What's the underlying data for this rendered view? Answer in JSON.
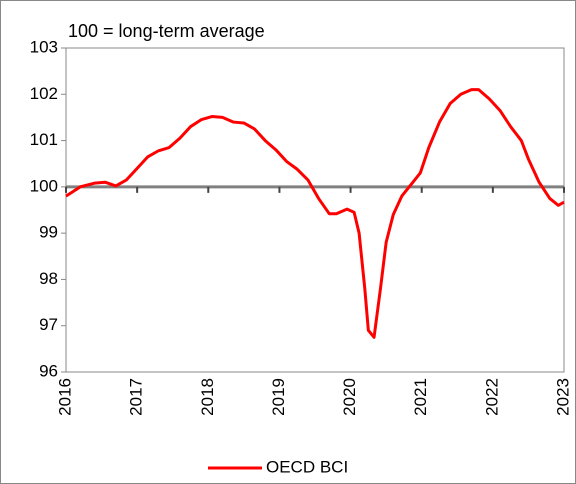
{
  "chart_data": {
    "type": "line",
    "title": "100 = long-term average",
    "x": [
      2016.0,
      2016.2,
      2016.4,
      2016.55,
      2016.7,
      2016.85,
      2017.0,
      2017.15,
      2017.3,
      2017.45,
      2017.6,
      2017.75,
      2017.9,
      2018.05,
      2018.2,
      2018.35,
      2018.5,
      2018.65,
      2018.8,
      2018.95,
      2019.1,
      2019.25,
      2019.4,
      2019.55,
      2019.7,
      2019.8,
      2019.95,
      2020.05,
      2020.12,
      2020.2,
      2020.25,
      2020.33,
      2020.42,
      2020.5,
      2020.6,
      2020.72,
      2020.85,
      2020.98,
      2021.1,
      2021.25,
      2021.4,
      2021.55,
      2021.7,
      2021.8,
      2021.95,
      2022.1,
      2022.25,
      2022.4,
      2022.5,
      2022.65,
      2022.8,
      2022.92,
      2023.0
    ],
    "series": [
      {
        "name": "OECD BCI",
        "color": "#ff0000",
        "values": [
          99.8,
          100.0,
          100.08,
          100.1,
          100.02,
          100.15,
          100.4,
          100.65,
          100.78,
          100.85,
          101.05,
          101.3,
          101.45,
          101.52,
          101.5,
          101.4,
          101.38,
          101.25,
          101.0,
          100.8,
          100.55,
          100.38,
          100.15,
          99.75,
          99.42,
          99.42,
          99.52,
          99.45,
          99.0,
          97.8,
          96.9,
          96.75,
          97.8,
          98.8,
          99.4,
          99.8,
          100.05,
          100.3,
          100.85,
          101.4,
          101.8,
          102.0,
          102.1,
          102.1,
          101.9,
          101.65,
          101.3,
          101.0,
          100.6,
          100.1,
          99.75,
          99.6,
          99.67
        ]
      }
    ],
    "xlim": [
      2016,
      2023
    ],
    "xticks": [
      2016,
      2017,
      2018,
      2019,
      2020,
      2021,
      2022,
      2023
    ],
    "ylim": [
      96,
      103
    ],
    "yticks": [
      96,
      97,
      98,
      99,
      100,
      101,
      102,
      103
    ],
    "x_axis_crosses": 100,
    "legend": "bottom"
  }
}
